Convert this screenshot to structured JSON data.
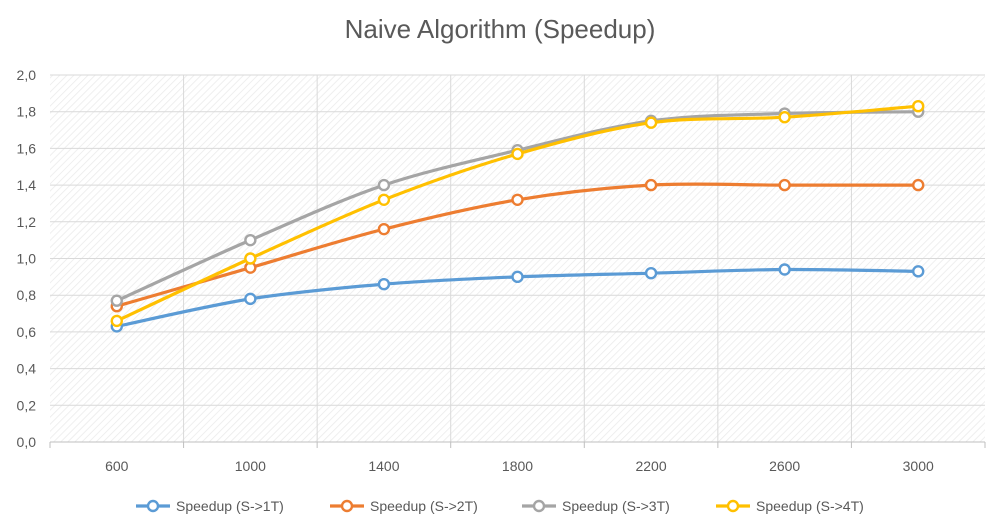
{
  "chart_data": {
    "type": "line",
    "title": "Naive Algorithm (Speedup)",
    "xlabel": "",
    "ylabel": "",
    "categories": [
      "600",
      "1000",
      "1400",
      "1800",
      "2200",
      "2600",
      "3000"
    ],
    "ylim": [
      0,
      2.0
    ],
    "yticks": [
      "0,0",
      "0,2",
      "0,4",
      "0,6",
      "0,8",
      "1,0",
      "1,2",
      "1,4",
      "1,6",
      "1,8",
      "2,0"
    ],
    "grid": true,
    "legend": "bottom",
    "series": [
      {
        "name": "Speedup (S->1T)",
        "color": "#5B9BD5",
        "values": [
          0.63,
          0.78,
          0.86,
          0.9,
          0.92,
          0.94,
          0.93
        ]
      },
      {
        "name": "Speedup (S->2T)",
        "color": "#ED7D31",
        "values": [
          0.74,
          0.95,
          1.16,
          1.32,
          1.4,
          1.4,
          1.4
        ]
      },
      {
        "name": "Speedup (S->3T)",
        "color": "#A5A5A5",
        "values": [
          0.77,
          1.1,
          1.4,
          1.59,
          1.75,
          1.79,
          1.8
        ]
      },
      {
        "name": "Speedup (S->4T)",
        "color": "#FFC000",
        "values": [
          0.66,
          1.0,
          1.32,
          1.57,
          1.74,
          1.77,
          1.83
        ]
      }
    ]
  }
}
